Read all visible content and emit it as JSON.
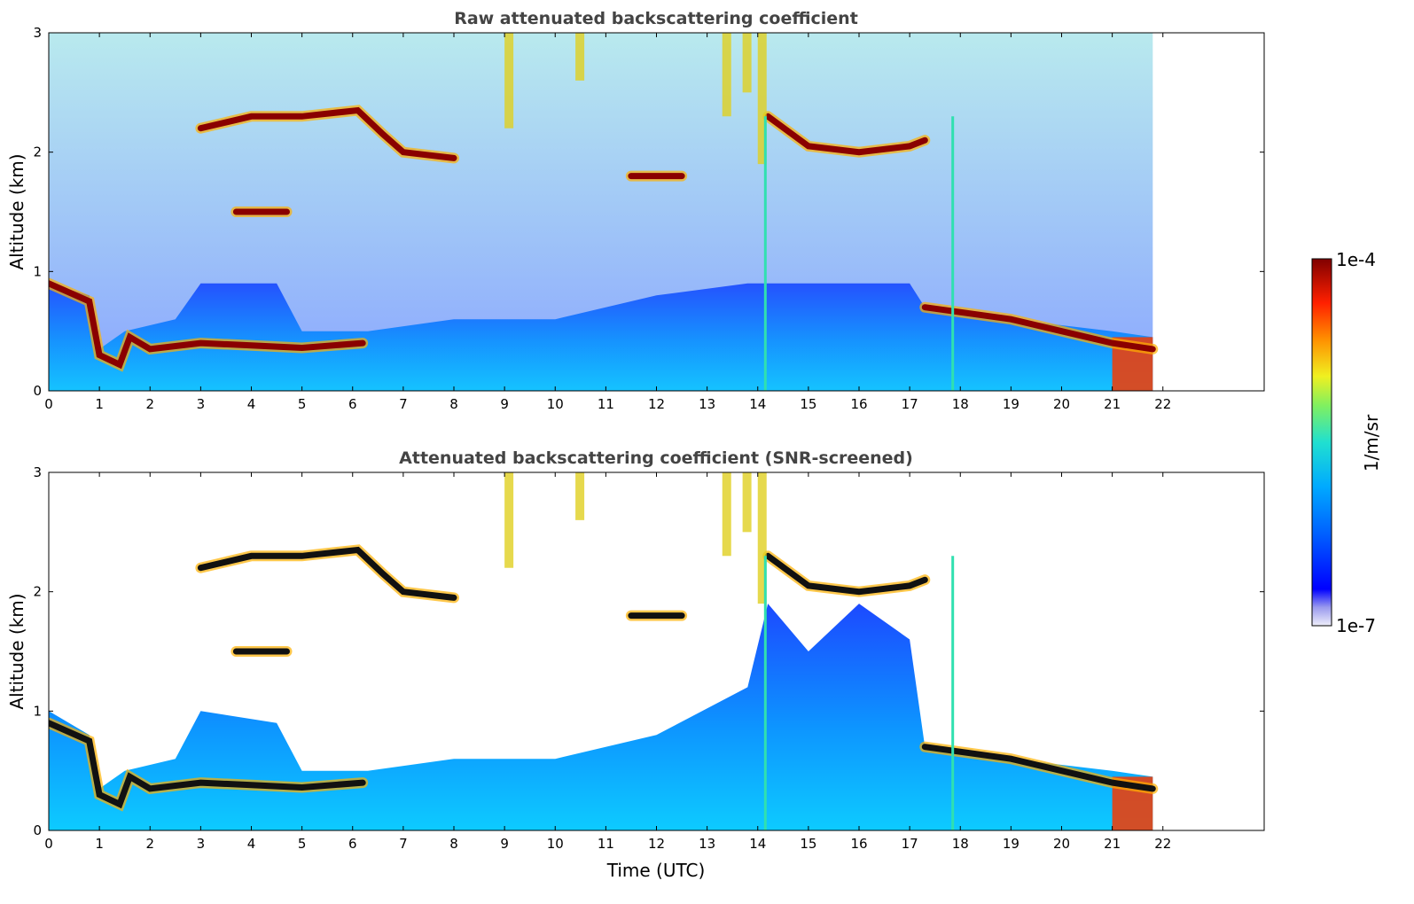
{
  "chart_data": [
    {
      "type": "heatmap",
      "title": "Raw attenuated backscattering coefficient",
      "xlabel": "",
      "ylabel": "Altitude (km)",
      "xlim": [
        0,
        24
      ],
      "ylim": [
        0,
        3
      ],
      "x_ticks": [
        "0",
        "1",
        "2",
        "3",
        "4",
        "5",
        "6",
        "7",
        "8",
        "9",
        "10",
        "11",
        "12",
        "13",
        "14",
        "15",
        "16",
        "17",
        "18",
        "19",
        "20",
        "21",
        "22"
      ],
      "y_ticks": [
        "0",
        "1",
        "2",
        "3"
      ],
      "data_end_time": 21.8,
      "layers": [
        {
          "name": "boundary layer top",
          "points": [
            [
              0,
              0.9
            ],
            [
              0.8,
              0.75
            ],
            [
              1,
              0.3
            ],
            [
              1.4,
              0.22
            ],
            [
              1.6,
              0.45
            ],
            [
              2,
              0.35
            ],
            [
              3,
              0.4
            ],
            [
              4,
              0.38
            ],
            [
              5,
              0.36
            ],
            [
              6.2,
              0.4
            ]
          ]
        },
        {
          "name": "cloud 2.2 km",
          "points": [
            [
              3,
              2.2
            ],
            [
              4,
              2.3
            ],
            [
              5,
              2.3
            ],
            [
              6.1,
              2.35
            ],
            [
              6.6,
              2.15
            ],
            [
              7,
              2.0
            ],
            [
              8,
              1.95
            ]
          ]
        },
        {
          "name": "cloud 1.5 km",
          "points": [
            [
              3.7,
              1.5
            ],
            [
              4.7,
              1.5
            ]
          ]
        },
        {
          "name": "cloud 1.8 km",
          "points": [
            [
              11.5,
              1.8
            ],
            [
              12.5,
              1.8
            ]
          ]
        },
        {
          "name": "cloud 2.1 km",
          "points": [
            [
              14.2,
              2.3
            ],
            [
              15,
              2.05
            ],
            [
              16,
              2.0
            ],
            [
              17,
              2.05
            ],
            [
              17.3,
              2.1
            ]
          ]
        },
        {
          "name": "boundary layer top (evening)",
          "points": [
            [
              17.3,
              0.7
            ],
            [
              19,
              0.6
            ],
            [
              20,
              0.5
            ],
            [
              21,
              0.4
            ],
            [
              21.8,
              0.35
            ]
          ]
        }
      ]
    },
    {
      "type": "heatmap",
      "title": "Attenuated backscattering coefficient (SNR-screened)",
      "xlabel": "Time (UTC)",
      "ylabel": "Altitude (km)",
      "xlim": [
        0,
        24
      ],
      "ylim": [
        0,
        3
      ],
      "x_ticks": [
        "0",
        "1",
        "2",
        "3",
        "4",
        "5",
        "6",
        "7",
        "8",
        "9",
        "10",
        "11",
        "12",
        "13",
        "14",
        "15",
        "16",
        "17",
        "18",
        "19",
        "20",
        "21",
        "22"
      ],
      "y_ticks": [
        "0",
        "1",
        "2",
        "3"
      ],
      "data_end_time": 21.8
    }
  ],
  "colorbar": {
    "label": "1/m/sr",
    "max_label": "1e-4",
    "min_label": "1e-7",
    "stops": [
      "#e8e8f8",
      "#3c3cff",
      "#0060ff",
      "#00b0ff",
      "#30e0c0",
      "#c0f040",
      "#ffe000",
      "#ff8000",
      "#e00000",
      "#800000"
    ]
  }
}
